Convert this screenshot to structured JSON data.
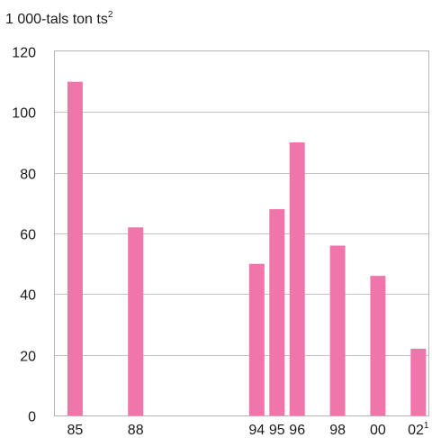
{
  "chart_data": {
    "type": "bar",
    "title": "",
    "unit_label": "1 000-tals ton ts",
    "unit_superscript": "2",
    "ylim": [
      0,
      120
    ],
    "yticks": [
      "0",
      "20",
      "40",
      "60",
      "80",
      "100",
      "120"
    ],
    "grid": true,
    "bar_color": "#f075ab",
    "categories": [
      "85",
      "88",
      "94",
      "95",
      "96",
      "98",
      "00",
      "02"
    ],
    "category_superscripts": [
      "",
      "",
      "",
      "",
      "",
      "",
      "",
      "1"
    ],
    "values": [
      110,
      62,
      50,
      68,
      90,
      56,
      46,
      22
    ]
  }
}
